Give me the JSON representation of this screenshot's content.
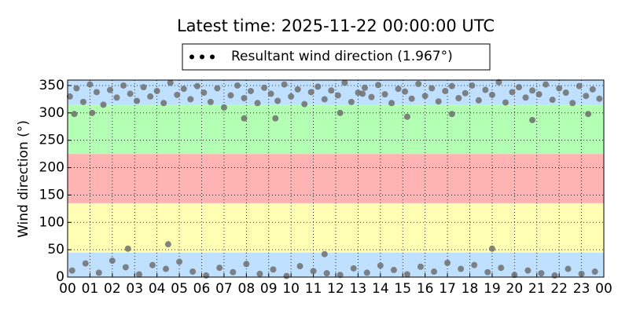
{
  "chart_data": {
    "type": "scatter",
    "title": "Latest time: 2025-11-22 00:00:00 UTC",
    "y_label": "Wind direction (°)",
    "xlim": [
      0,
      24
    ],
    "ylim": [
      0,
      360
    ],
    "xticks": [
      {
        "value": 0,
        "label": "00"
      },
      {
        "value": 1,
        "label": "01"
      },
      {
        "value": 2,
        "label": "02"
      },
      {
        "value": 3,
        "label": "03"
      },
      {
        "value": 4,
        "label": "04"
      },
      {
        "value": 5,
        "label": "05"
      },
      {
        "value": 6,
        "label": "06"
      },
      {
        "value": 7,
        "label": "07"
      },
      {
        "value": 8,
        "label": "08"
      },
      {
        "value": 9,
        "label": "09"
      },
      {
        "value": 10,
        "label": "10"
      },
      {
        "value": 11,
        "label": "11"
      },
      {
        "value": 12,
        "label": "12"
      },
      {
        "value": 13,
        "label": "13"
      },
      {
        "value": 14,
        "label": "14"
      },
      {
        "value": 15,
        "label": "15"
      },
      {
        "value": 16,
        "label": "16"
      },
      {
        "value": 17,
        "label": "17"
      },
      {
        "value": 18,
        "label": "18"
      },
      {
        "value": 19,
        "label": "19"
      },
      {
        "value": 20,
        "label": "20"
      },
      {
        "value": 21,
        "label": "21"
      },
      {
        "value": 22,
        "label": "22"
      },
      {
        "value": 23,
        "label": "23"
      },
      {
        "value": 24,
        "label": "00"
      }
    ],
    "yticks": [
      0,
      50,
      100,
      150,
      200,
      250,
      300,
      350
    ],
    "grid": true,
    "legend": "top",
    "bands": [
      {
        "from": 0,
        "to": 45,
        "color": "#bfe0ff"
      },
      {
        "from": 45,
        "to": 135,
        "color": "#ffffb3"
      },
      {
        "from": 135,
        "to": 225,
        "color": "#ffb3b3"
      },
      {
        "from": 225,
        "to": 315,
        "color": "#b3ffb3"
      },
      {
        "from": 315,
        "to": 360,
        "color": "#bfe0ff"
      }
    ],
    "series": [
      {
        "name": "Resultant wind direction (1.967°)",
        "color": "#6e6e6e",
        "x": [
          0.1,
          0.4,
          0.7,
          1.0,
          1.3,
          1.6,
          1.9,
          2.2,
          2.5,
          2.8,
          3.1,
          3.4,
          3.7,
          4.0,
          4.3,
          4.6,
          4.9,
          5.2,
          5.5,
          5.8,
          6.1,
          6.4,
          6.7,
          7.0,
          7.3,
          7.6,
          7.9,
          8.2,
          8.5,
          8.8,
          9.1,
          9.4,
          9.7,
          10.0,
          10.3,
          10.6,
          10.9,
          11.2,
          11.5,
          11.8,
          12.1,
          12.4,
          12.7,
          13.0,
          13.3,
          13.6,
          13.9,
          14.2,
          14.5,
          14.8,
          15.1,
          15.4,
          15.7,
          16.0,
          16.3,
          16.6,
          16.9,
          17.2,
          17.5,
          17.8,
          18.1,
          18.4,
          18.7,
          19.0,
          19.3,
          19.6,
          19.9,
          20.2,
          20.5,
          20.8,
          21.1,
          21.4,
          21.7,
          22.0,
          22.3,
          22.6,
          22.9,
          23.2,
          23.5,
          23.8,
          0.2,
          0.8,
          1.4,
          2.0,
          2.6,
          3.2,
          3.8,
          4.4,
          5.0,
          5.6,
          6.2,
          6.8,
          7.4,
          8.0,
          8.6,
          9.2,
          9.8,
          10.4,
          11.0,
          11.6,
          12.2,
          12.8,
          13.4,
          14.0,
          14.6,
          15.2,
          15.8,
          16.4,
          17.0,
          17.6,
          18.2,
          18.8,
          19.4,
          20.0,
          20.6,
          21.2,
          21.8,
          22.4,
          23.0,
          23.6,
          0.3,
          1.1,
          2.7,
          4.5,
          7.9,
          9.3,
          11.5,
          12.2,
          15.2,
          17.2,
          19.0,
          20.8,
          23.3,
          13.2
        ],
        "values": [
          330,
          345,
          320,
          352,
          338,
          315,
          342,
          328,
          350,
          335,
          322,
          347,
          330,
          340,
          318,
          355,
          333,
          344,
          325,
          349,
          337,
          320,
          345,
          310,
          332,
          350,
          327,
          340,
          318,
          346,
          335,
          322,
          352,
          330,
          343,
          316,
          338,
          348,
          325,
          341,
          332,
          355,
          320,
          337,
          346,
          329,
          351,
          334,
          318,
          344,
          339,
          326,
          353,
          331,
          345,
          321,
          340,
          349,
          327,
          336,
          350,
          323,
          342,
          333,
          356,
          319,
          338,
          347,
          328,
          341,
          334,
          352,
          324,
          345,
          337,
          318,
          349,
          331,
          343,
          326,
          12,
          25,
          8,
          30,
          18,
          5,
          22,
          15,
          28,
          10,
          3,
          17,
          9,
          24,
          6,
          14,
          2,
          20,
          11,
          7,
          4,
          16,
          8,
          21,
          13,
          5,
          19,
          10,
          26,
          15,
          22,
          9,
          17,
          4,
          12,
          7,
          3,
          15,
          6,
          10,
          298,
          300,
          52,
          60,
          290,
          290,
          42,
          300,
          293,
          298,
          52,
          287,
          298,
          335
        ]
      }
    ]
  }
}
